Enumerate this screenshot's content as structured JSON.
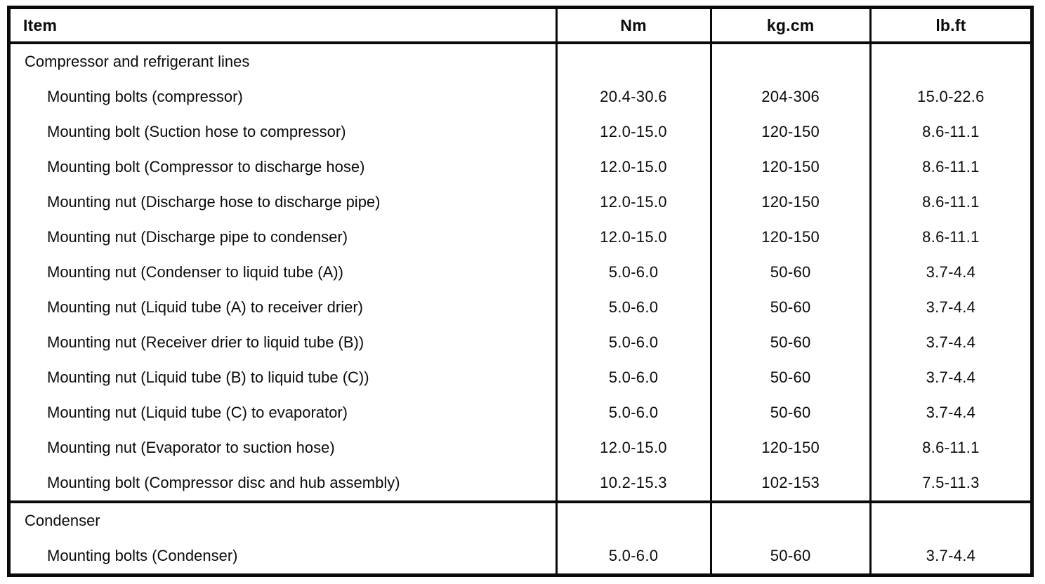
{
  "table": {
    "columns": [
      "Item",
      "Nm",
      "kg.cm",
      "lb.ft"
    ],
    "sections": [
      {
        "title": "Compressor and refrigerant lines",
        "rows": [
          {
            "item": "Mounting bolts (compressor)",
            "nm": "20.4-30.6",
            "kgcm": "204-306",
            "lbft": "15.0-22.6"
          },
          {
            "item": "Mounting bolt (Suction hose to compressor)",
            "nm": "12.0-15.0",
            "kgcm": "120-150",
            "lbft": "8.6-11.1"
          },
          {
            "item": "Mounting bolt (Compressor to discharge hose)",
            "nm": "12.0-15.0",
            "kgcm": "120-150",
            "lbft": "8.6-11.1"
          },
          {
            "item": "Mounting nut (Discharge hose to discharge pipe)",
            "nm": "12.0-15.0",
            "kgcm": "120-150",
            "lbft": "8.6-11.1"
          },
          {
            "item": "Mounting nut (Discharge pipe to condenser)",
            "nm": "12.0-15.0",
            "kgcm": "120-150",
            "lbft": "8.6-11.1"
          },
          {
            "item": "Mounting nut (Condenser to liquid tube (A))",
            "nm": "5.0-6.0",
            "kgcm": "50-60",
            "lbft": "3.7-4.4"
          },
          {
            "item": "Mounting nut (Liquid tube (A) to receiver drier)",
            "nm": "5.0-6.0",
            "kgcm": "50-60",
            "lbft": "3.7-4.4"
          },
          {
            "item": "Mounting nut (Receiver drier to liquid tube (B))",
            "nm": "5.0-6.0",
            "kgcm": "50-60",
            "lbft": "3.7-4.4"
          },
          {
            "item": "Mounting nut (Liquid tube (B) to liquid tube (C))",
            "nm": "5.0-6.0",
            "kgcm": "50-60",
            "lbft": "3.7-4.4"
          },
          {
            "item": "Mounting nut (Liquid tube (C) to evaporator)",
            "nm": "5.0-6.0",
            "kgcm": "50-60",
            "lbft": "3.7-4.4"
          },
          {
            "item": "Mounting nut (Evaporator to suction hose)",
            "nm": "12.0-15.0",
            "kgcm": "120-150",
            "lbft": "8.6-11.1"
          },
          {
            "item": "Mounting bolt (Compressor disc and hub assembly)",
            "nm": "10.2-15.3",
            "kgcm": "102-153",
            "lbft": "7.5-11.3"
          }
        ]
      },
      {
        "title": "Condenser",
        "rows": [
          {
            "item": "Mounting bolts (Condenser)",
            "nm": "5.0-6.0",
            "kgcm": "50-60",
            "lbft": "3.7-4.4"
          }
        ]
      }
    ]
  }
}
